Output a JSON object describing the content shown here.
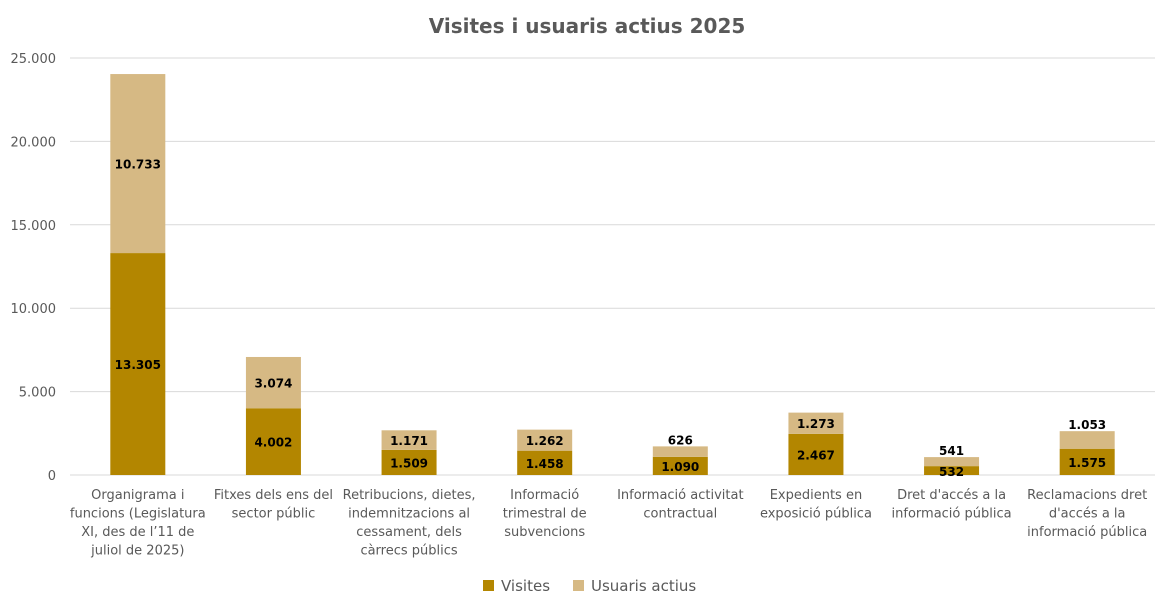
{
  "chart_data": {
    "type": "bar",
    "stacked": true,
    "title": "Visites i usuaris actius 2025",
    "categories": [
      [
        "Organigrama i",
        "funcions (Legislatura",
        "XI, des de l’11 de",
        "juliol de 2025)"
      ],
      [
        "Fitxes dels ens del",
        "sector públic"
      ],
      [
        "Retribucions, dietes,",
        "indemnitzacions al",
        "cessament, dels",
        "càrrecs públics"
      ],
      [
        "Informació",
        "trimestral de",
        "subvencions"
      ],
      [
        "Informació activitat",
        "contractual"
      ],
      [
        "Expedients en",
        "exposició pública"
      ],
      [
        "Dret d'accés a la",
        "informació pública"
      ],
      [
        "Reclamacions dret",
        "d'accés a la",
        "informació pública"
      ]
    ],
    "series": [
      {
        "name": "Visites",
        "color": "#b38600",
        "values": [
          13305,
          4002,
          1509,
          1458,
          1090,
          2467,
          532,
          1575
        ],
        "labels": [
          "13.305",
          "4.002",
          "1.509",
          "1.458",
          "1.090",
          "2.467",
          "532",
          "1.575"
        ]
      },
      {
        "name": "Usuaris actius",
        "color": "#d6b984",
        "values": [
          10733,
          3074,
          1171,
          1262,
          626,
          1273,
          541,
          1053
        ],
        "labels": [
          "10.733",
          "3.074",
          "1.171",
          "1.262",
          "626",
          "1.273",
          "541",
          "1.053"
        ]
      }
    ],
    "ylim": [
      0,
      25000
    ],
    "yticks": [
      0,
      5000,
      10000,
      15000,
      20000,
      25000
    ],
    "ytick_labels": [
      "0",
      "5.000",
      "10.000",
      "15.000",
      "20.000",
      "25.000"
    ],
    "grid": true,
    "legend_position": "bottom"
  }
}
